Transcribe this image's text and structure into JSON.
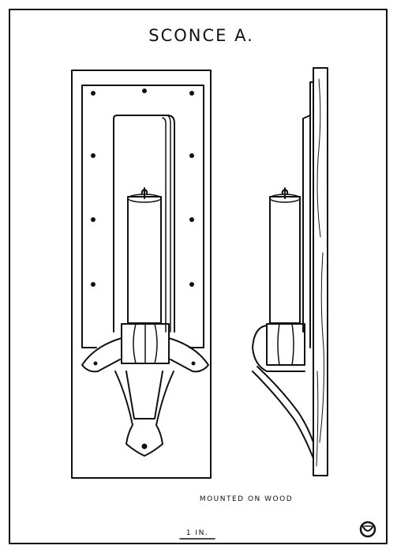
{
  "title": "SCONCE A.",
  "caption": "MOUNTED ON WOOD",
  "scale": "1 IN.",
  "colors": {
    "ink": "#111111",
    "paper": "#ffffff"
  },
  "mark": "monogram-mark"
}
